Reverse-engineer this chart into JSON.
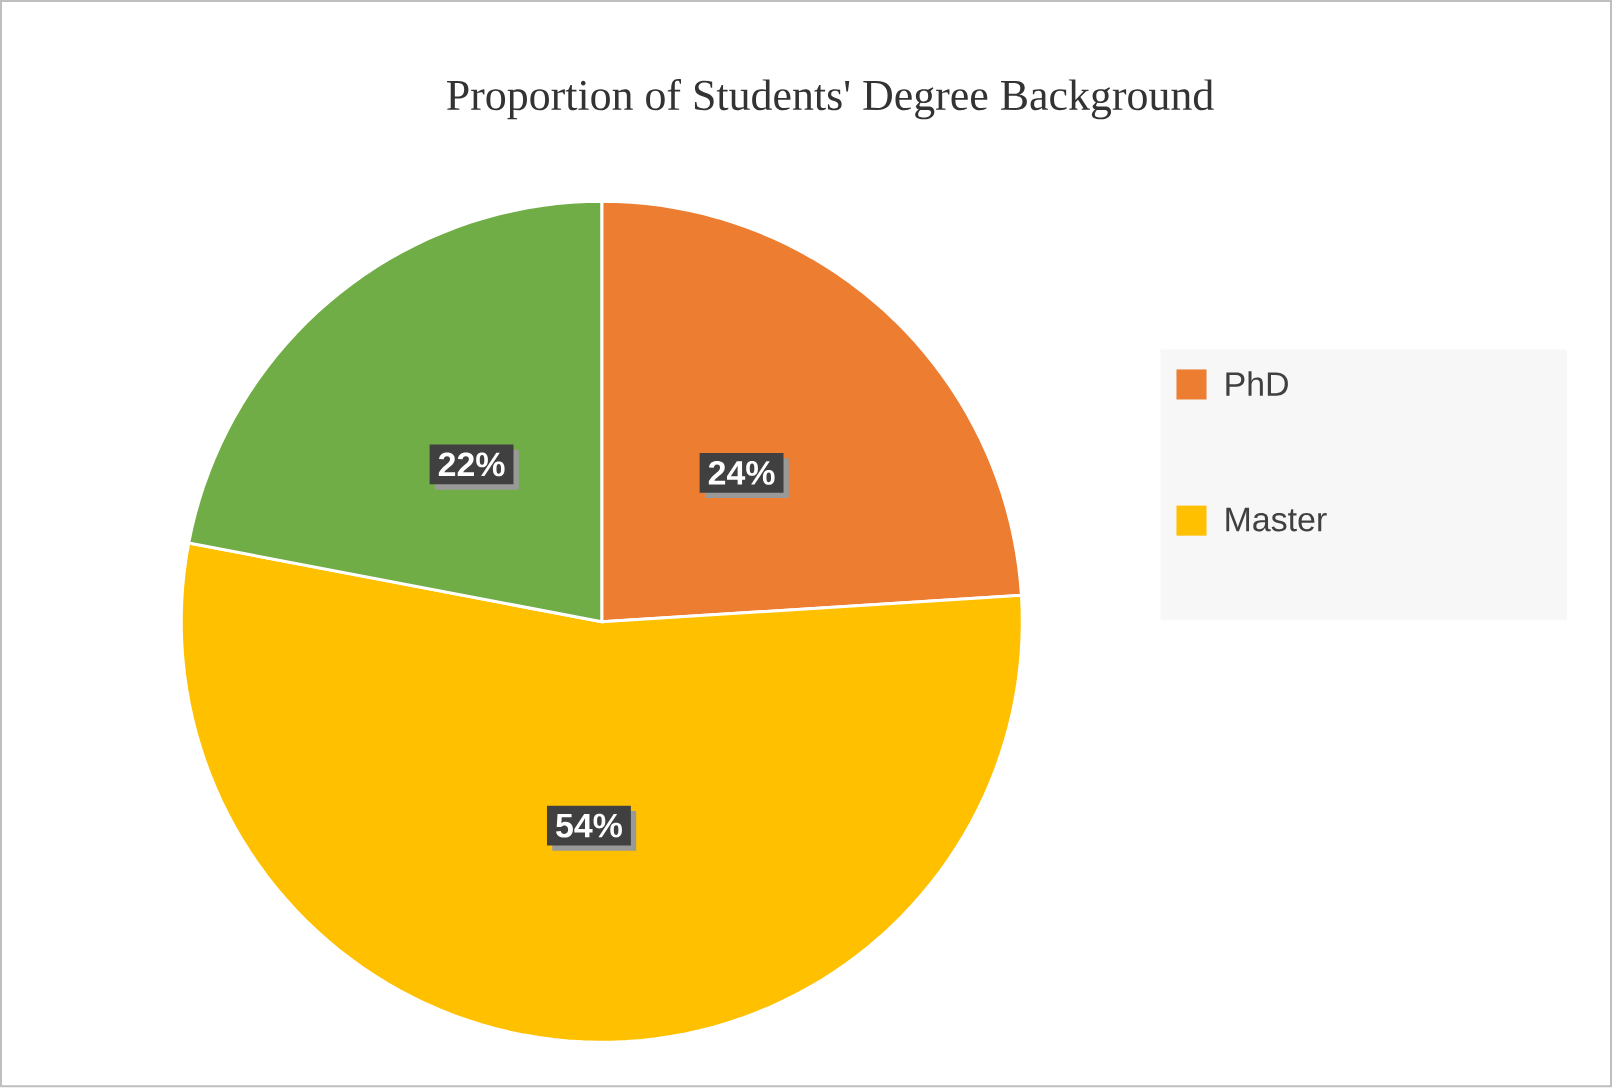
{
  "chart_data": {
    "type": "pie",
    "title": "Proportion of Students' Degree Background",
    "categories": [
      "PhD",
      "Master",
      null
    ],
    "values": [
      24,
      54,
      22
    ],
    "colors": [
      "#ed7d31",
      "#ffc000",
      "#70ad47"
    ],
    "value_labels": [
      "24%",
      "54%",
      "22%"
    ],
    "legend": "right"
  }
}
